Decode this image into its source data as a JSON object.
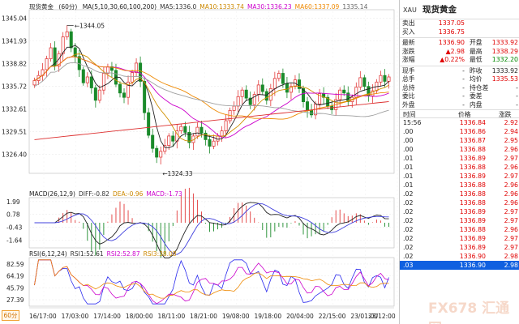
{
  "chart": {
    "symbol_label": "现货黄金",
    "period_label": "60分",
    "watermark": "FX678 汇通网",
    "ma_legend": [
      {
        "text": "MA(5,10,30,60,100,200)",
        "color": "#222222"
      },
      {
        "text": "MA5:1336.0",
        "color": "#333333"
      },
      {
        "text": "MA10:1333.74",
        "color": "#cc8800"
      },
      {
        "text": "MA30:1336.23",
        "color": "#cc00cc"
      },
      {
        "text": "MA60:1337.09",
        "color": "#ee8800"
      },
      {
        "text": "1335.14",
        "color": "#666666"
      }
    ],
    "macd_legend": [
      {
        "text": "MACD(26,12,9)",
        "color": "#222222"
      },
      {
        "text": "DIFF:-0.82",
        "color": "#333333"
      },
      {
        "text": "DEA:-0.96",
        "color": "#cc8800"
      },
      {
        "text": "MACD:-1.73",
        "color": "#cc00cc"
      }
    ],
    "rsi_legend": [
      {
        "text": "RSI(6,12,24)",
        "color": "#222222"
      },
      {
        "text": "RSI1:52.61",
        "color": "#333333"
      },
      {
        "text": "RSI2:52.87",
        "color": "#cc00cc"
      },
      {
        "text": "RSI3:38.08",
        "color": "#cc8800"
      }
    ],
    "price_ticks": [
      "1345.04",
      "1341.93",
      "1338.82",
      "1335.72",
      "1332.61",
      "1329.51",
      "1326.40"
    ],
    "macd_ticks": [
      "1.99",
      "0.78",
      "-0.43",
      "-1.64"
    ],
    "rsi_ticks": [
      "82.59",
      "64.19",
      "45.79",
      "27.39"
    ],
    "time_labels": [
      "16/17:00",
      "17/03:00",
      "17/14:00",
      "18/00:00",
      "18/11:00",
      "18/21:00",
      "19/08:00",
      "19/18:00",
      "20/04:00",
      "22/15:00",
      "23/01:00",
      "23/12:00"
    ],
    "high_marker": "1344.05",
    "low_marker": "1324.33"
  },
  "chart_data": {
    "type": "candlestick",
    "title": "现货黄金 60分",
    "price_range": [
      1324.0,
      1346.0
    ],
    "price_ticks": [
      1345.04,
      1341.93,
      1338.82,
      1335.72,
      1332.61,
      1329.51,
      1326.4
    ],
    "high": 1344.05,
    "low": 1324.33,
    "time_labels": [
      "16/17:00",
      "17/03:00",
      "17/14:00",
      "18/00:00",
      "18/11:00",
      "18/21:00",
      "19/08:00",
      "19/18:00",
      "20/04:00",
      "22/15:00",
      "23/01:00",
      "23/12:00"
    ],
    "close_series": [
      1336.5,
      1337.2,
      1338.0,
      1339.5,
      1341.0,
      1338.5,
      1340.2,
      1342.5,
      1343.2,
      1341.0,
      1339.8,
      1338.0,
      1336.2,
      1337.0,
      1335.5,
      1333.8,
      1335.2,
      1337.5,
      1338.4,
      1337.9,
      1336.0,
      1334.8,
      1334.2,
      1336.3,
      1337.6,
      1338.9,
      1336.4,
      1332.1,
      1329.0,
      1327.2,
      1326.0,
      1326.8,
      1327.6,
      1328.9,
      1328.2,
      1329.6,
      1330.2,
      1329.4,
      1328.0,
      1328.9,
      1330.1,
      1329.3,
      1328.4,
      1327.5,
      1328.2,
      1328.9,
      1329.6,
      1331.0,
      1332.4,
      1333.0,
      1334.3,
      1335.2,
      1334.1,
      1333.2,
      1334.6,
      1335.9,
      1335.0,
      1333.8,
      1335.4,
      1336.8,
      1337.5,
      1336.1,
      1334.9,
      1335.7,
      1336.6,
      1335.4,
      1333.6,
      1332.4,
      1331.8,
      1333.3,
      1334.7,
      1334.2,
      1333.0,
      1332.5,
      1333.9,
      1335.2,
      1334.8,
      1333.6,
      1334.2,
      1335.6,
      1336.9,
      1335.7,
      1334.4,
      1335.1,
      1336.3,
      1337.2,
      1336.4,
      1337.0
    ],
    "macd_range": [
      -2.2,
      2.2
    ],
    "rsi_range": [
      20,
      90
    ],
    "ma_values": {
      "MA5": 1336.0,
      "MA10": 1333.74,
      "MA30": 1336.23,
      "MA60": 1337.09,
      "MA_other": 1335.14
    },
    "macd_values": {
      "DIFF": -0.82,
      "DEA": -0.96,
      "MACD": -1.73
    },
    "rsi_values": {
      "RSI1": 52.61,
      "RSI2": 52.87,
      "RSI3": 38.08
    }
  },
  "quote": {
    "code": "XAU",
    "name": "现货黄金",
    "rows": [
      {
        "l": "卖出",
        "v": "1337.05",
        "vc": "red",
        "l2": "",
        "v2": "",
        "v2c": "dark"
      },
      {
        "l": "买入",
        "v": "1336.75",
        "vc": "red",
        "l2": "",
        "v2": "",
        "v2c": "dark"
      },
      {
        "l": "最新",
        "v": "1336.90",
        "vc": "red",
        "l2": "开盘",
        "v2": "1333.92",
        "v2c": "red"
      },
      {
        "l": "涨跌",
        "v": "▲2.98",
        "vc": "red",
        "l2": "最高",
        "v2": "1338.29",
        "v2c": "red"
      },
      {
        "l": "涨幅",
        "v": "▲0.22%",
        "vc": "red",
        "l2": "最低",
        "v2": "1332.20",
        "v2c": "green"
      },
      {
        "l": "现手",
        "v": "-",
        "vc": "dark",
        "l2": "昨收",
        "v2": "1333.92",
        "v2c": "dark"
      },
      {
        "l": "总手",
        "v": "-",
        "vc": "dark",
        "l2": "均价",
        "v2": "1335.53",
        "v2c": "red"
      },
      {
        "l": "总持",
        "v": "-",
        "vc": "dark",
        "l2": "持仓差",
        "v2": "-",
        "v2c": "dark"
      },
      {
        "l": "委比",
        "v": "-",
        "vc": "dark",
        "l2": "委差",
        "v2": "-",
        "v2c": "dark"
      },
      {
        "l": "外盘",
        "v": "-",
        "vc": "dark",
        "l2": "内盘",
        "v2": "-",
        "v2c": "dark"
      }
    ],
    "tick_header": {
      "time": "时间",
      "price": "价格",
      "change": "涨跌"
    },
    "ticks": [
      {
        "t": "15:56",
        "p": "1336.84",
        "c": "2.92"
      },
      {
        "t": ".00",
        "p": "1336.86",
        "c": "2.94"
      },
      {
        "t": ".00",
        "p": "1336.87",
        "c": "2.95"
      },
      {
        "t": ".00",
        "p": "1336.88",
        "c": "2.96"
      },
      {
        "t": ".01",
        "p": "1336.89",
        "c": "2.97"
      },
      {
        "t": ".01",
        "p": "1336.88",
        "c": "2.96"
      },
      {
        "t": ".01",
        "p": "1336.89",
        "c": "2.97"
      },
      {
        "t": ".01",
        "p": "1336.88",
        "c": "2.96"
      },
      {
        "t": ".02",
        "p": "1336.88",
        "c": "2.96"
      },
      {
        "t": ".02",
        "p": "1336.88",
        "c": "2.96"
      },
      {
        "t": ".02",
        "p": "1336.89",
        "c": "2.97"
      },
      {
        "t": ".02",
        "p": "1336.89",
        "c": "2.97"
      },
      {
        "t": ".02",
        "p": "1336.88",
        "c": "2.96"
      },
      {
        "t": ".02",
        "p": "1336.89",
        "c": "2.97"
      },
      {
        "t": ".02",
        "p": "1336.89",
        "c": "2.97"
      },
      {
        "t": ".02",
        "p": "1336.90",
        "c": "2.98"
      },
      {
        "t": ".03",
        "p": "1336.90",
        "c": "2.98"
      }
    ]
  }
}
